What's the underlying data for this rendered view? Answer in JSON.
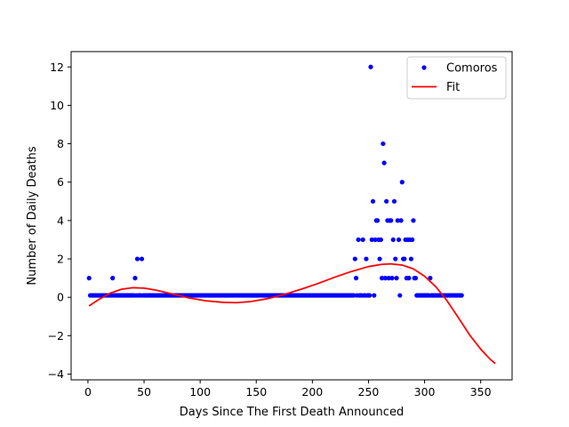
{
  "chart_data": {
    "type": "scatter",
    "title": "",
    "xlabel": "Days Since The First Death Announced",
    "ylabel": "Number of Daily Deaths",
    "xlim": [
      -15,
      378
    ],
    "ylim": [
      -4.3,
      12.8
    ],
    "xticks": [
      0,
      50,
      100,
      150,
      200,
      250,
      300,
      350
    ],
    "yticks": [
      -4,
      -2,
      0,
      2,
      4,
      6,
      8,
      10,
      12
    ],
    "grid": false,
    "legend_position": "top-right",
    "series": [
      {
        "name": "Comoros",
        "kind": "points",
        "color": "#0000ff",
        "x_start": 1,
        "x_end": 333,
        "default_y": 0.1,
        "points": [
          [
            1,
            1
          ],
          [
            22,
            1
          ],
          [
            42,
            1
          ],
          [
            44,
            2
          ],
          [
            48,
            2
          ],
          [
            238,
            2
          ],
          [
            239,
            1
          ],
          [
            241,
            3
          ],
          [
            245,
            3
          ],
          [
            248,
            2
          ],
          [
            252,
            12
          ],
          [
            253,
            3
          ],
          [
            254,
            5
          ],
          [
            256,
            3
          ],
          [
            257,
            4
          ],
          [
            258,
            4
          ],
          [
            259,
            3
          ],
          [
            260,
            2
          ],
          [
            261,
            3
          ],
          [
            262,
            1
          ],
          [
            263,
            8
          ],
          [
            264,
            7
          ],
          [
            265,
            1
          ],
          [
            266,
            5
          ],
          [
            267,
            4
          ],
          [
            268,
            1
          ],
          [
            269,
            4
          ],
          [
            270,
            4
          ],
          [
            271,
            1
          ],
          [
            272,
            3
          ],
          [
            273,
            5
          ],
          [
            274,
            2
          ],
          [
            275,
            1
          ],
          [
            276,
            4
          ],
          [
            277,
            3
          ],
          [
            279,
            4
          ],
          [
            280,
            6
          ],
          [
            281,
            2
          ],
          [
            282,
            2
          ],
          [
            283,
            3
          ],
          [
            284,
            1
          ],
          [
            285,
            3
          ],
          [
            286,
            1
          ],
          [
            287,
            3
          ],
          [
            288,
            2
          ],
          [
            289,
            3
          ],
          [
            290,
            4
          ],
          [
            291,
            1
          ],
          [
            292,
            1
          ],
          [
            305,
            1
          ]
        ]
      },
      {
        "name": "Fit",
        "kind": "line",
        "color": "#ff0000",
        "curve": [
          [
            1,
            -0.45
          ],
          [
            10,
            -0.1
          ],
          [
            20,
            0.22
          ],
          [
            30,
            0.42
          ],
          [
            40,
            0.5
          ],
          [
            50,
            0.48
          ],
          [
            60,
            0.38
          ],
          [
            75,
            0.18
          ],
          [
            90,
            -0.03
          ],
          [
            105,
            -0.18
          ],
          [
            120,
            -0.26
          ],
          [
            132,
            -0.28
          ],
          [
            145,
            -0.22
          ],
          [
            160,
            -0.07
          ],
          [
            175,
            0.15
          ],
          [
            190,
            0.42
          ],
          [
            205,
            0.72
          ],
          [
            220,
            1.05
          ],
          [
            235,
            1.35
          ],
          [
            250,
            1.6
          ],
          [
            262,
            1.72
          ],
          [
            270,
            1.74
          ],
          [
            280,
            1.68
          ],
          [
            290,
            1.48
          ],
          [
            300,
            1.1
          ],
          [
            310,
            0.55
          ],
          [
            320,
            -0.18
          ],
          [
            330,
            -1.05
          ],
          [
            340,
            -1.95
          ],
          [
            350,
            -2.7
          ],
          [
            358,
            -3.2
          ],
          [
            363,
            -3.45
          ]
        ]
      }
    ]
  }
}
